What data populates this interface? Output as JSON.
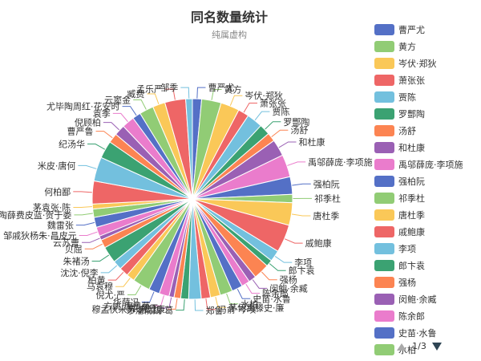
{
  "chart_data": {
    "type": "pie",
    "title": "同名数量统计",
    "subtitle": "纯属虚构",
    "legend_position": "right",
    "slices": [
      {
        "name": "曹严尤",
        "value": 22,
        "color": "#5470c6"
      },
      {
        "name": "黄方",
        "value": 47,
        "color": "#91cc75"
      },
      {
        "name": "岑伏·郑狄",
        "value": 45,
        "color": "#fac858"
      },
      {
        "name": "萧张张",
        "value": 26,
        "color": "#ee6666"
      },
      {
        "name": "贾陈",
        "value": 38,
        "color": "#73c0de"
      },
      {
        "name": "罗酆陶",
        "value": 26,
        "color": "#3ba272"
      },
      {
        "name": "汤舒",
        "value": 21,
        "color": "#fc8452"
      },
      {
        "name": "和杜康",
        "value": 40,
        "color": "#9a60b4"
      },
      {
        "name": "禹邬薛庞·李项施",
        "value": 54,
        "color": "#ea7ccc"
      },
      {
        "name": "强柏阮",
        "value": 42,
        "color": "#5470c6"
      },
      {
        "name": "祁季杜",
        "value": 20,
        "color": "#91cc75"
      },
      {
        "name": "唐杜季",
        "value": 54,
        "color": "#fac858"
      },
      {
        "name": "戚鲍康",
        "value": 67,
        "color": "#ee6666"
      },
      {
        "name": "李项",
        "value": 27,
        "color": "#73c0de"
      },
      {
        "name": "郎卞袁",
        "value": 16,
        "color": "#3ba272"
      },
      {
        "name": "强杨",
        "value": 38,
        "color": "#fc8452"
      },
      {
        "name": "闵鲍·余臧",
        "value": 18,
        "color": "#9a60b4"
      },
      {
        "name": "陈余郎",
        "value": 20,
        "color": "#ea7ccc"
      },
      {
        "name": "史苗·水鲁",
        "value": 26,
        "color": "#5470c6"
      },
      {
        "name": "水柏",
        "value": 30,
        "color": "#91cc75"
      },
      {
        "name": "茅何禹滕史·廉",
        "value": 24,
        "color": "#fac858"
      },
      {
        "name": "冯俞·岑项",
        "value": 22,
        "color": "#ee6666"
      },
      {
        "name": "郑鲁",
        "value": 30,
        "color": "#73c0de"
      },
      {
        "name": "茅潘俞魏·葛",
        "value": 19,
        "color": "#3ba272"
      },
      {
        "name": "穆孟伏米苏·方蓝康",
        "value": 16,
        "color": "#fc8452"
      },
      {
        "name": "花鲍于",
        "value": 12,
        "color": "#9a60b4"
      },
      {
        "name": "方姚·唐贝茅",
        "value": 24,
        "color": "#ea7ccc"
      },
      {
        "name": "华薛冯",
        "value": 26,
        "color": "#5470c6"
      },
      {
        "name": "倪尤·严",
        "value": 42,
        "color": "#91cc75"
      },
      {
        "name": "马袁穆",
        "value": 20,
        "color": "#fac858"
      },
      {
        "name": "柏黄",
        "value": 22,
        "color": "#ee6666"
      },
      {
        "name": "沈沈·倪李",
        "value": 22,
        "color": "#73c0de"
      },
      {
        "name": "朱褚汤",
        "value": 40,
        "color": "#3ba272"
      },
      {
        "name": "贝屈",
        "value": 20,
        "color": "#fc8452"
      },
      {
        "name": "云苏曹",
        "value": 10,
        "color": "#9a60b4"
      },
      {
        "name": "邹戚狄杨朱·昌皮元",
        "value": 22,
        "color": "#ea7ccc"
      },
      {
        "name": "魏雷张",
        "value": 24,
        "color": "#5470c6"
      },
      {
        "name": "陶薛费皮蓝·贺于娄",
        "value": 20,
        "color": "#91cc75"
      },
      {
        "name": "茅袁张·陈",
        "value": 12,
        "color": "#fac858"
      },
      {
        "name": "何柏鄙",
        "value": 55,
        "color": "#ee6666"
      },
      {
        "name": "米皮·唐何",
        "value": 58,
        "color": "#73c0de"
      },
      {
        "name": "纪汤华",
        "value": 42,
        "color": "#3ba272"
      },
      {
        "name": "曹严鲁",
        "value": 23,
        "color": "#fc8452"
      },
      {
        "name": "倪顾柏",
        "value": 26,
        "color": "#9a60b4"
      },
      {
        "name": "袁季",
        "value": 30,
        "color": "#ea7ccc"
      },
      {
        "name": "尤毕陶周红·花安时",
        "value": 20,
        "color": "#5470c6"
      },
      {
        "name": "云窦金",
        "value": 34,
        "color": "#91cc75"
      },
      {
        "name": "臧费",
        "value": 30,
        "color": "#fac858"
      },
      {
        "name": "孟乐严",
        "value": 50,
        "color": "#ee6666"
      },
      {
        "name": "邹季",
        "value": 16,
        "color": "#73c0de"
      }
    ],
    "legend_page_count": 20,
    "pager_text": "1/3"
  }
}
